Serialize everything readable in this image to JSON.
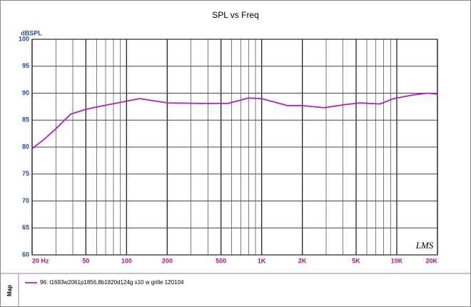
{
  "chart_data": {
    "type": "line",
    "title": "SPL vs Freq",
    "y_label": "dBSPL",
    "x": [
      20,
      25,
      30,
      38.6,
      50,
      71,
      100,
      125,
      200,
      350,
      565,
      800,
      1000,
      1550,
      2000,
      2900,
      4200,
      5300,
      7500,
      9500,
      13400,
      17000,
      20000
    ],
    "series": [
      {
        "name": "96: t1693w2061p1856,8b1820d124g x10 w grille 120104",
        "color": "#b020c0",
        "values": [
          79.7,
          81.6,
          83.4,
          86.1,
          87.0,
          87.8,
          88.5,
          89.0,
          88.2,
          88.1,
          88.1,
          89.1,
          89.0,
          87.7,
          87.7,
          87.3,
          87.9,
          88.2,
          88.0,
          89.0,
          89.7,
          90.0,
          89.8
        ]
      }
    ],
    "log_x": true,
    "xlim": [
      20,
      20000
    ],
    "ylim": [
      60,
      100
    ],
    "xticks": [
      {
        "value": 20,
        "label": "20 Hz"
      },
      50,
      100,
      200,
      500,
      {
        "value": 1000,
        "label": "1K"
      },
      {
        "value": 2000,
        "label": "2K"
      },
      {
        "value": 5000,
        "label": "5K"
      },
      {
        "value": 10000,
        "label": "10K"
      },
      {
        "value": 20000,
        "label": "20K"
      }
    ],
    "xgrid": [
      30,
      40,
      60,
      70,
      80,
      90,
      300,
      400,
      600,
      700,
      800,
      900,
      3000,
      4000,
      6000,
      7000,
      8000,
      9000
    ],
    "yticks": [
      60,
      65,
      70,
      75,
      80,
      85,
      90,
      95,
      100
    ],
    "grid": true,
    "watermark": "LMS",
    "legend_title": "Map"
  }
}
